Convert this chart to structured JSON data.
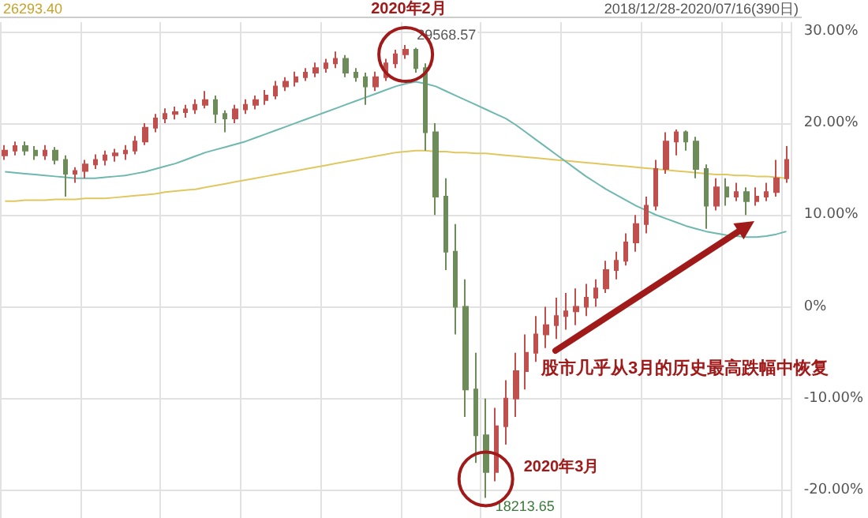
{
  "chart_data": {
    "type": "candlestick",
    "categories": [
      null,
      null,
      null,
      null,
      null,
      null,
      null,
      null,
      null,
      null,
      null,
      null,
      null,
      null,
      null,
      null,
      null,
      null,
      null,
      null,
      null,
      null,
      null,
      null,
      null,
      null,
      null,
      null,
      null,
      null,
      null,
      null,
      null,
      null,
      null,
      null,
      null,
      null,
      null,
      null,
      null,
      null,
      null,
      null,
      null,
      null,
      null,
      null,
      null,
      null,
      null,
      null,
      null,
      null,
      null,
      null,
      null,
      null,
      null,
      null,
      null,
      null,
      null,
      null,
      null,
      null,
      null,
      null,
      null,
      null,
      null,
      null,
      null,
      null,
      null,
      null,
      null,
      null,
      null
    ],
    "series": [
      {
        "type": "line",
        "color": "#e0c860",
        "values": [
          11.5,
          11.5,
          11.6,
          11.6,
          11.6,
          11.7,
          11.7,
          11.7,
          11.8,
          11.8,
          11.8,
          11.9,
          12,
          12.1,
          12.2,
          12.3,
          12.5,
          12.6,
          12.7,
          12.8,
          13,
          13.2,
          13.4,
          13.6,
          13.8,
          14,
          14.2,
          14.4,
          14.6,
          14.8,
          15,
          15.2,
          15.4,
          15.6,
          15.8,
          16,
          16.2,
          16.4,
          16.6,
          16.8,
          16.9,
          17,
          17,
          16.9,
          16.9,
          16.8,
          16.8,
          16.7,
          16.7,
          16.6,
          16.5,
          16.4,
          16.3,
          16.2,
          16.1,
          16,
          15.9,
          15.8,
          15.7,
          15.6,
          15.5,
          15.4,
          15.3,
          15.2,
          15.1,
          15,
          14.9,
          14.8,
          14.7,
          14.6,
          14.5,
          14.4,
          14.4,
          14.3,
          14.3,
          14.2,
          14.2,
          14.1,
          14
        ]
      },
      {
        "type": "line",
        "color": "#6fb8b0",
        "values": [
          14.7,
          14.6,
          14.5,
          14.4,
          14.3,
          14.2,
          14.1,
          14,
          14,
          14,
          14.1,
          14.2,
          14.3,
          14.5,
          14.7,
          15,
          15.3,
          15.6,
          16,
          16.4,
          16.8,
          17.1,
          17.4,
          17.7,
          18,
          18.4,
          18.8,
          19.2,
          19.6,
          20,
          20.4,
          20.8,
          21.2,
          21.6,
          22,
          22.4,
          22.8,
          23.2,
          23.6,
          24,
          24.3,
          24.5,
          24.3,
          24,
          23.5,
          23,
          22.5,
          22,
          21.5,
          21,
          20.5,
          19.8,
          19,
          18.2,
          17.4,
          16.6,
          15.8,
          15,
          14.2,
          13.5,
          12.8,
          12.2,
          11.6,
          11,
          10.5,
          10,
          9.6,
          9.2,
          8.8,
          8.5,
          8.2,
          8,
          7.8,
          7.7,
          7.6,
          7.6,
          7.7,
          7.9,
          8.2
        ]
      },
      {
        "colors": [
          "#c0504d",
          "#c0504d",
          "#6e8b5a",
          "#6e8b5a",
          "#c0504d",
          "#6e8b5a",
          "#6e8b5a",
          "#c0504d",
          "#c0504d",
          "#c0504d",
          "#c0504d",
          "#c0504d",
          "#c0504d",
          "#c0504d",
          "#c0504d",
          "#c0504d",
          "#c0504d",
          "#c0504d",
          "#c0504d",
          "#c0504d",
          "#c0504d",
          "#6e8b5a",
          "#6e8b5a",
          "#c0504d",
          "#c0504d",
          "#c0504d",
          "#c0504d",
          "#c0504d",
          "#c0504d",
          "#c0504d",
          "#c0504d",
          "#c0504d",
          "#c0504d",
          "#c0504d",
          "#6e8b5a",
          "#6e8b5a",
          "#6e8b5a",
          "#c0504d",
          "#c0504d",
          "#c0504d",
          "#c0504d",
          "#6e8b5a",
          "#6e8b5a",
          "#6e8b5a",
          "#6e8b5a",
          "#6e8b5a",
          "#6e8b5a",
          "#6e8b5a",
          "#6e8b5a",
          "#c0504d",
          "#c0504d",
          "#c0504d",
          "#c0504d",
          "#c0504d",
          "#c0504d",
          "#c0504d",
          "#c0504d",
          "#c0504d",
          "#c0504d",
          "#c0504d",
          "#c0504d",
          "#c0504d",
          "#c0504d",
          "#c0504d",
          "#c0504d",
          "#c0504d",
          "#c0504d",
          "#c0504d",
          "#6e8b5a",
          "#6e8b5a",
          "#6e8b5a",
          "#c0504d",
          "#6e8b5a",
          "#c0504d",
          "#6e8b5a",
          "#c0504d",
          "#c0504d",
          "#c0504d",
          "#c0504d"
        ],
        "ohlc": [
          [
            16.5,
            17.6,
            16,
            17
          ],
          [
            17,
            18,
            16.5,
            17.5
          ],
          [
            17.5,
            18,
            16.5,
            17
          ],
          [
            17,
            17.5,
            16,
            16.5
          ],
          [
            16.5,
            17.6,
            16,
            17
          ],
          [
            17,
            17.4,
            15.5,
            16
          ],
          [
            16,
            16.5,
            12,
            14.5
          ],
          [
            14.5,
            15.2,
            13.5,
            14.8
          ],
          [
            14.8,
            16,
            14,
            15.5
          ],
          [
            15.5,
            16.6,
            15,
            16
          ],
          [
            16,
            17,
            15.4,
            16.5
          ],
          [
            16.5,
            17.2,
            15.8,
            16.7
          ],
          [
            16.7,
            17.6,
            16,
            17
          ],
          [
            17,
            18.6,
            16.6,
            18
          ],
          [
            18,
            20,
            17.6,
            19.5
          ],
          [
            19.5,
            21,
            19,
            20.5
          ],
          [
            20.5,
            21.6,
            20,
            21
          ],
          [
            21,
            21.8,
            20.4,
            21.2
          ],
          [
            21.2,
            22,
            20.6,
            21.5
          ],
          [
            21.5,
            22.6,
            21,
            22
          ],
          [
            22,
            23.5,
            21.6,
            22.5
          ],
          [
            22.5,
            23,
            20,
            21
          ],
          [
            21,
            21.4,
            19,
            20.5
          ],
          [
            20.5,
            22,
            20,
            21.5
          ],
          [
            21.5,
            22.6,
            21,
            22
          ],
          [
            22,
            23,
            21.5,
            22.5
          ],
          [
            22.5,
            23.6,
            22,
            23
          ],
          [
            23,
            24.6,
            22.6,
            24
          ],
          [
            24,
            25,
            23.5,
            24.5
          ],
          [
            24.5,
            25.6,
            24,
            25
          ],
          [
            25,
            26,
            24.6,
            25.5
          ],
          [
            25.5,
            26.6,
            25,
            26
          ],
          [
            26,
            27,
            25.5,
            26.5
          ],
          [
            26.5,
            27.8,
            26,
            27
          ],
          [
            27,
            27.4,
            25,
            25.5
          ],
          [
            25.5,
            26,
            24.5,
            25
          ],
          [
            25,
            25.5,
            22,
            24
          ],
          [
            24,
            25.6,
            23.5,
            25
          ],
          [
            25,
            27,
            24.6,
            26.5
          ],
          [
            26.5,
            28,
            26,
            27.5
          ],
          [
            27.5,
            28.5,
            27,
            28
          ],
          [
            28,
            28.2,
            25.5,
            26
          ],
          [
            26,
            26.5,
            17,
            19
          ],
          [
            19,
            20,
            10,
            12
          ],
          [
            12,
            14,
            4,
            6
          ],
          [
            6,
            9,
            -3,
            0
          ],
          [
            0,
            3,
            -12,
            -9
          ],
          [
            -9,
            -5,
            -17,
            -14
          ],
          [
            -14,
            -10,
            -20.8,
            -18
          ],
          [
            -18,
            -11,
            -19,
            -13
          ],
          [
            -13,
            -8,
            -15,
            -10
          ],
          [
            -10,
            -5,
            -12,
            -7
          ],
          [
            -7,
            -3,
            -9,
            -5
          ],
          [
            -5,
            -1,
            -6,
            -3
          ],
          [
            -3,
            0,
            -4.5,
            -2
          ],
          [
            -2,
            1,
            -3.5,
            -1
          ],
          [
            -1,
            1.5,
            -2.5,
            -0.5
          ],
          [
            -0.5,
            2,
            -2,
            0
          ],
          [
            0,
            2.5,
            -1,
            1
          ],
          [
            1,
            3,
            0,
            2
          ],
          [
            2,
            5,
            1.5,
            4
          ],
          [
            4,
            6,
            3,
            5
          ],
          [
            5,
            8,
            4.5,
            7
          ],
          [
            7,
            10,
            6,
            9
          ],
          [
            9,
            12,
            8,
            11
          ],
          [
            11,
            16,
            10.5,
            15
          ],
          [
            15,
            19,
            14.5,
            18
          ],
          [
            18,
            19.3,
            16.5,
            19
          ],
          [
            19,
            19.2,
            17,
            18
          ],
          [
            18,
            18.5,
            14,
            15
          ],
          [
            15,
            15.5,
            8.5,
            11
          ],
          [
            11,
            14,
            10.5,
            13
          ],
          [
            13,
            14,
            11,
            12
          ],
          [
            12,
            13.5,
            11.5,
            12.5
          ],
          [
            12.5,
            13,
            10,
            11.5
          ],
          [
            11.5,
            13,
            11,
            12
          ],
          [
            12,
            13.5,
            11.5,
            12.5
          ],
          [
            12.5,
            16,
            12,
            14
          ],
          [
            14,
            17.5,
            13.5,
            16
          ]
        ]
      }
    ],
    "ylim": [
      -23,
      31
    ],
    "yticks": [
      {
        "value": -20,
        "label": "-20.00%"
      },
      {
        "value": -10,
        "label": "-10.00%"
      },
      {
        "value": 0,
        "label": "0%"
      },
      {
        "value": 10,
        "label": "10.00%"
      },
      {
        "value": 20,
        "label": "20.00%"
      },
      {
        "value": 30,
        "label": "30.00%"
      }
    ],
    "tick_labels": "y",
    "grid": true,
    "line_style": "solid",
    "annotations": [
      "26293.40",
      "2018/12/28-2020/07/16(390日)",
      "2020年2月",
      "29568.57",
      "2020年3月",
      "18213.65",
      "股市几乎从3月的历史最高跌幅中恢复"
    ]
  }
}
